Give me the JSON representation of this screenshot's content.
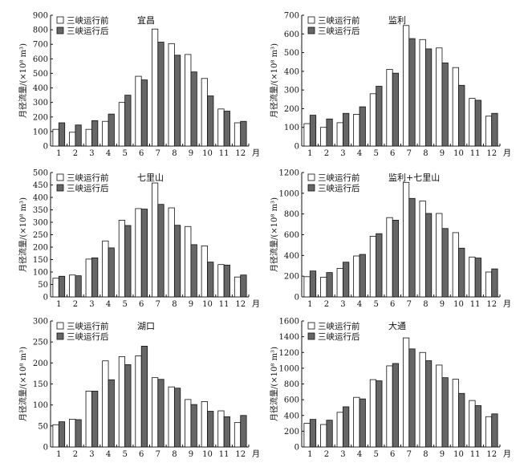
{
  "legend": {
    "before": "三峡运行前",
    "after": "三峡运行后"
  },
  "colors": {
    "before": "#ffffff",
    "after": "#666666",
    "stroke": "#111111"
  },
  "chart_data": [
    {
      "type": "bar",
      "title": "宜昌",
      "ylabel": "月径流量/(×10⁸ m³)",
      "month_unit": "月",
      "categories": [
        "1",
        "2",
        "3",
        "4",
        "5",
        "6",
        "7",
        "8",
        "9",
        "10",
        "11",
        "12"
      ],
      "ylim": [
        0,
        900
      ],
      "yticks": [
        0,
        100,
        200,
        300,
        400,
        500,
        600,
        700,
        800,
        900
      ],
      "series": [
        {
          "name": "三峡运行前",
          "values": [
            115,
            95,
            115,
            170,
            300,
            480,
            805,
            705,
            630,
            465,
            255,
            160
          ]
        },
        {
          "name": "三峡运行后",
          "values": [
            160,
            145,
            175,
            220,
            350,
            455,
            715,
            625,
            510,
            345,
            240,
            170
          ]
        }
      ]
    },
    {
      "type": "bar",
      "title": "监利",
      "ylabel": "月径流量/(×10⁸ m³)",
      "month_unit": "月",
      "categories": [
        "1",
        "2",
        "3",
        "4",
        "5",
        "6",
        "7",
        "8",
        "9",
        "10",
        "11",
        "12"
      ],
      "ylim": [
        0,
        700
      ],
      "yticks": [
        0,
        100,
        200,
        300,
        400,
        500,
        600,
        700
      ],
      "series": [
        {
          "name": "三峡运行前",
          "values": [
            120,
            100,
            125,
            170,
            280,
            410,
            645,
            570,
            525,
            420,
            255,
            160
          ]
        },
        {
          "name": "三峡运行后",
          "values": [
            165,
            145,
            175,
            210,
            320,
            390,
            575,
            520,
            445,
            325,
            245,
            175
          ]
        }
      ]
    },
    {
      "type": "bar",
      "title": "七里山",
      "ylabel": "月径流量/(×10⁸ m³)",
      "month_unit": "月",
      "categories": [
        "1",
        "2",
        "3",
        "4",
        "5",
        "6",
        "7",
        "8",
        "9",
        "10",
        "11",
        "12"
      ],
      "ylim": [
        0,
        500
      ],
      "yticks": [
        0,
        50,
        100,
        150,
        200,
        250,
        300,
        350,
        400,
        450,
        500
      ],
      "series": [
        {
          "name": "三峡运行前",
          "values": [
            75,
            88,
            152,
            225,
            308,
            355,
            458,
            358,
            283,
            205,
            130,
            80
          ]
        },
        {
          "name": "三峡运行后",
          "values": [
            83,
            85,
            157,
            197,
            287,
            353,
            372,
            288,
            210,
            140,
            128,
            88
          ]
        }
      ]
    },
    {
      "type": "bar",
      "title": "监利+七里山",
      "ylabel": "月径流量/(×10⁸ m³)",
      "month_unit": "月",
      "categories": [
        "1",
        "2",
        "3",
        "4",
        "5",
        "6",
        "7",
        "8",
        "9",
        "10",
        "11",
        "12"
      ],
      "ylim": [
        0,
        1200
      ],
      "yticks": [
        0,
        200,
        400,
        600,
        800,
        1000,
        1200
      ],
      "series": [
        {
          "name": "三峡运行前",
          "values": [
            195,
            190,
            275,
            395,
            585,
            765,
            1105,
            925,
            805,
            620,
            385,
            240
          ]
        },
        {
          "name": "三峡运行后",
          "values": [
            250,
            235,
            335,
            410,
            610,
            740,
            950,
            805,
            660,
            470,
            375,
            270
          ]
        }
      ]
    },
    {
      "type": "bar",
      "title": "湖口",
      "ylabel": "月径流量/(×10⁸ m³)",
      "month_unit": "月",
      "categories": [
        "1",
        "2",
        "3",
        "4",
        "5",
        "6",
        "7",
        "8",
        "9",
        "10",
        "11",
        "12"
      ],
      "ylim": [
        0,
        300
      ],
      "yticks": [
        0,
        50,
        100,
        150,
        200,
        250,
        300
      ],
      "series": [
        {
          "name": "三峡运行前",
          "values": [
            53,
            66,
            133,
            205,
            215,
            217,
            165,
            143,
            113,
            108,
            86,
            58
          ]
        },
        {
          "name": "三峡运行后",
          "values": [
            60,
            65,
            133,
            160,
            196,
            240,
            161,
            140,
            101,
            85,
            72,
            75
          ]
        }
      ]
    },
    {
      "type": "bar",
      "title": "大通",
      "ylabel": "月径流量/(×10⁸ m³)",
      "month_unit": "月",
      "categories": [
        "1",
        "2",
        "3",
        "4",
        "5",
        "6",
        "7",
        "8",
        "9",
        "10",
        "11",
        "12"
      ],
      "ylim": [
        0,
        1600
      ],
      "yticks": [
        0,
        200,
        400,
        600,
        800,
        1000,
        1200,
        1400,
        1600
      ],
      "series": [
        {
          "name": "三峡运行前",
          "values": [
            300,
            285,
            440,
            630,
            855,
            1030,
            1385,
            1200,
            1040,
            860,
            590,
            385
          ]
        },
        {
          "name": "三峡运行后",
          "values": [
            350,
            340,
            510,
            610,
            840,
            1060,
            1245,
            1095,
            880,
            680,
            525,
            420
          ]
        }
      ]
    }
  ]
}
